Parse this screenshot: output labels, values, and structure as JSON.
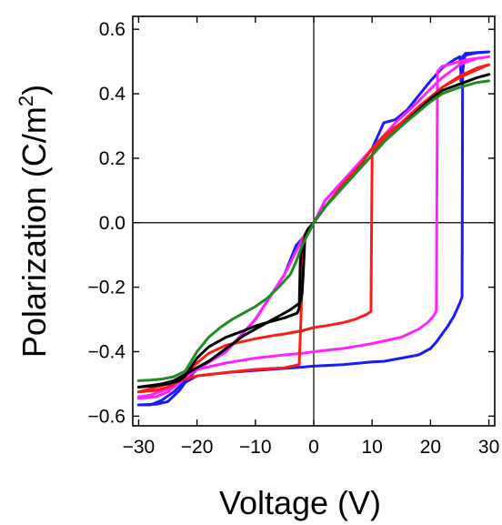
{
  "chart_data": {
    "type": "line",
    "title": "",
    "xlabel": "Voltage (V)",
    "ylabel": "Polarization (C/m",
    "ylabel_sup": "2",
    "ylabel_close": ")",
    "xlim": [
      -31,
      31
    ],
    "ylim": [
      -0.63,
      0.64
    ],
    "xticks": [
      -30,
      -20,
      -10,
      0,
      10,
      20,
      30
    ],
    "xtick_labels": [
      "−30",
      "−20",
      "−10",
      "0",
      "10",
      "20",
      "30"
    ],
    "yticks": [
      0.6,
      0.4,
      0.2,
      0.0,
      -0.2,
      -0.4,
      -0.6
    ],
    "ytick_labels": [
      "0.6",
      "0.4",
      "0.2",
      "0.0",
      "−0.2",
      "−0.4",
      "−0.6"
    ],
    "grid": false,
    "legend": "none",
    "series": [
      {
        "color": "#1a1aff",
        "x": [
          -30,
          -27,
          -25,
          -23,
          -22,
          -20,
          -15,
          -10,
          -5,
          -2,
          0,
          5,
          10,
          12,
          15,
          18,
          20,
          21,
          22,
          23,
          24,
          25,
          25.4,
          25.5,
          25.7,
          26,
          28,
          30,
          30,
          28,
          26,
          25.5,
          25.3,
          25.2,
          25.2,
          25,
          24,
          22,
          20,
          18,
          16,
          14,
          12,
          10,
          8,
          5,
          2,
          0,
          -2,
          -3,
          -5,
          -10,
          -15,
          -20,
          -22,
          -24,
          -26,
          -28,
          -30
        ],
        "y": [
          -0.565,
          -0.563,
          -0.555,
          -0.52,
          -0.495,
          -0.475,
          -0.465,
          -0.458,
          -0.452,
          -0.448,
          -0.445,
          -0.44,
          -0.432,
          -0.43,
          -0.42,
          -0.41,
          -0.39,
          -0.37,
          -0.345,
          -0.32,
          -0.29,
          -0.25,
          -0.23,
          0.46,
          0.505,
          0.52,
          0.527,
          0.53,
          0.53,
          0.528,
          0.525,
          0.515,
          0.47,
          0.44,
          0.465,
          0.515,
          0.505,
          0.48,
          0.44,
          0.395,
          0.35,
          0.32,
          0.31,
          0.23,
          0.18,
          0.13,
          0.07,
          0.0,
          -0.05,
          -0.07,
          -0.16,
          -0.3,
          -0.4,
          -0.455,
          -0.49,
          -0.525,
          -0.55,
          -0.565,
          -0.565
        ]
      },
      {
        "color": "#ff22ff",
        "x": [
          -30,
          -27,
          -25,
          -23,
          -22,
          -20,
          -15,
          -10,
          -5,
          -2,
          0,
          5,
          10,
          15,
          18,
          19.5,
          20.5,
          21,
          21.2,
          21.5,
          22,
          24,
          26,
          28,
          30,
          30,
          28,
          25,
          22,
          20,
          17,
          14,
          12,
          10,
          8,
          5,
          2,
          0,
          -1.5,
          -2.5,
          -5,
          -10,
          -15,
          -20,
          -22,
          -25,
          -28,
          -30
        ],
        "y": [
          -0.545,
          -0.54,
          -0.525,
          -0.495,
          -0.475,
          -0.455,
          -0.435,
          -0.42,
          -0.41,
          -0.405,
          -0.4,
          -0.39,
          -0.375,
          -0.355,
          -0.33,
          -0.31,
          -0.29,
          -0.275,
          0.47,
          0.475,
          0.485,
          0.495,
          0.505,
          0.51,
          0.515,
          0.515,
          0.51,
          0.49,
          0.45,
          0.415,
          0.36,
          0.31,
          0.27,
          0.23,
          0.19,
          0.13,
          0.07,
          0.0,
          -0.035,
          -0.07,
          -0.16,
          -0.3,
          -0.4,
          -0.455,
          -0.48,
          -0.515,
          -0.535,
          -0.54
        ]
      },
      {
        "color": "#ff1a1a",
        "x": [
          -30,
          -27,
          -25,
          -23,
          -22,
          -20,
          -18,
          -15,
          -10,
          -7,
          -5,
          -2,
          0,
          2,
          5,
          7,
          9,
          9.8,
          10,
          10.3,
          11,
          12,
          15,
          18,
          20,
          22,
          25,
          28,
          30,
          30,
          28,
          25,
          22,
          20,
          18,
          15,
          12,
          10,
          8,
          5,
          2,
          0,
          -1,
          -1.8,
          -2.2,
          -2.5,
          -5,
          -10,
          -15,
          -20,
          -22,
          -25,
          -28,
          -30
        ],
        "y": [
          -0.525,
          -0.52,
          -0.51,
          -0.49,
          -0.47,
          -0.435,
          -0.405,
          -0.38,
          -0.36,
          -0.35,
          -0.345,
          -0.335,
          -0.325,
          -0.32,
          -0.31,
          -0.3,
          -0.285,
          -0.275,
          0.21,
          0.225,
          0.24,
          0.26,
          0.31,
          0.36,
          0.39,
          0.42,
          0.45,
          0.475,
          0.49,
          0.49,
          0.48,
          0.455,
          0.42,
          0.39,
          0.36,
          0.31,
          0.27,
          0.23,
          0.18,
          0.12,
          0.05,
          0.0,
          -0.02,
          -0.05,
          -0.3,
          -0.44,
          -0.45,
          -0.455,
          -0.465,
          -0.475,
          -0.485,
          -0.5,
          -0.515,
          -0.525
        ]
      },
      {
        "color": "#000000",
        "x": [
          -30,
          -27,
          -25,
          -23,
          -22,
          -20,
          -18,
          -15,
          -12,
          -10,
          -8,
          -5,
          -3.5,
          -2.8,
          -2.5,
          -2.3,
          -2,
          -1.5,
          -1,
          0,
          2,
          5,
          8,
          10,
          12,
          15,
          18,
          20,
          22,
          25,
          28,
          30,
          30,
          28,
          25,
          22,
          20,
          18,
          15,
          12,
          10,
          8,
          5,
          2,
          0,
          -1,
          -1.5,
          -1.8,
          -2,
          -2.2,
          -2.5,
          -4,
          -6,
          -8,
          -10,
          -12,
          -15,
          -18,
          -20,
          -22,
          -24,
          -26,
          -28,
          -30
        ],
        "y": [
          -0.51,
          -0.505,
          -0.5,
          -0.49,
          -0.475,
          -0.42,
          -0.385,
          -0.355,
          -0.335,
          -0.32,
          -0.31,
          -0.295,
          -0.285,
          -0.28,
          -0.265,
          -0.12,
          -0.07,
          -0.05,
          -0.035,
          0.0,
          0.05,
          0.11,
          0.17,
          0.21,
          0.25,
          0.3,
          0.35,
          0.385,
          0.41,
          0.43,
          0.45,
          0.46,
          0.46,
          0.45,
          0.43,
          0.41,
          0.385,
          0.35,
          0.3,
          0.25,
          0.21,
          0.17,
          0.11,
          0.05,
          0.0,
          -0.02,
          -0.04,
          -0.16,
          -0.22,
          -0.24,
          -0.25,
          -0.27,
          -0.29,
          -0.31,
          -0.33,
          -0.35,
          -0.39,
          -0.43,
          -0.45,
          -0.47,
          -0.49,
          -0.5,
          -0.505,
          -0.51
        ]
      },
      {
        "color": "#228b22",
        "x": [
          -30,
          -28,
          -26,
          -24,
          -22,
          -20,
          -18,
          -16,
          -14,
          -12,
          -10,
          -8,
          -6,
          -4,
          -3,
          -2,
          -1,
          0,
          2,
          5,
          8,
          10,
          12,
          15,
          18,
          20,
          22,
          25,
          28,
          30
        ],
        "y": [
          -0.49,
          -0.488,
          -0.485,
          -0.478,
          -0.46,
          -0.4,
          -0.355,
          -0.325,
          -0.3,
          -0.28,
          -0.26,
          -0.235,
          -0.2,
          -0.16,
          -0.12,
          -0.07,
          -0.035,
          0.0,
          0.05,
          0.11,
          0.17,
          0.21,
          0.25,
          0.3,
          0.345,
          0.375,
          0.4,
          0.42,
          0.435,
          0.44
        ]
      }
    ]
  }
}
